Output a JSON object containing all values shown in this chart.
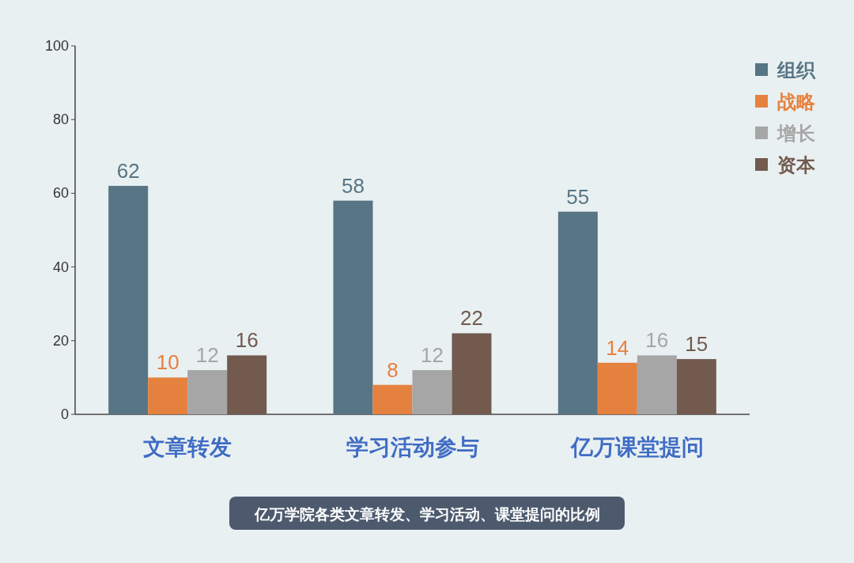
{
  "chart_data": {
    "type": "bar",
    "categories": [
      "文章转发",
      "学习活动参与",
      "亿万课堂提问"
    ],
    "series": [
      {
        "name": "组织",
        "color": "#577584",
        "values": [
          62,
          58,
          55
        ]
      },
      {
        "name": "战略",
        "color": "#e5813f",
        "values": [
          10,
          8,
          14
        ]
      },
      {
        "name": "增长",
        "color": "#a6a6a6",
        "values": [
          12,
          12,
          16
        ]
      },
      {
        "name": "资本",
        "color": "#725a4f",
        "values": [
          16,
          22,
          15
        ]
      }
    ],
    "ylim": [
      0,
      100
    ],
    "yticks": [
      0,
      20,
      40,
      60,
      80,
      100
    ],
    "data_labels": true,
    "legend": "top right",
    "grid": false,
    "annotations": [
      "亿万学院各类文章转发、学习活动、课堂提问的比例"
    ]
  }
}
